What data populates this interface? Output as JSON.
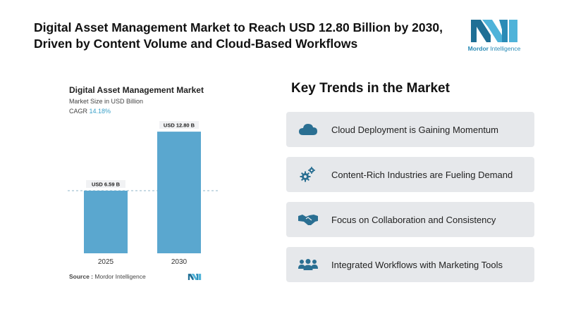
{
  "header": {
    "headline": "Digital Asset Management Market to Reach USD 12.80 Billion by 2030, Driven by Content Volume and Cloud-Based Workflows"
  },
  "logo": {
    "brand_bold": "Mordor",
    "brand_rest": " Intelligence"
  },
  "chart_data": {
    "type": "bar",
    "title": "Digital Asset Management Market",
    "subtitle": "Market Size in USD Billion",
    "cagr_label": "CAGR",
    "cagr_value": "14.18%",
    "categories": [
      "2025",
      "2030"
    ],
    "values": [
      6.59,
      12.8
    ],
    "data_labels": [
      "USD 6.59 B",
      "USD 12.80 B"
    ],
    "ylim": [
      0,
      13.4
    ],
    "reference_line_value": 6.59,
    "bar_color": "#5aa7cf",
    "grid": false
  },
  "source": {
    "label": "Source :",
    "text": "Mordor Intelligence"
  },
  "trends": {
    "heading": "Key Trends in the Market",
    "items": [
      {
        "label": "Cloud Deployment is Gaining Momentum",
        "icon": "cloud-icon"
      },
      {
        "label": "Content-Rich Industries are Fueling Demand",
        "icon": "gears-icon"
      },
      {
        "label": "Focus on Collaboration and Consistency",
        "icon": "handshake-icon"
      },
      {
        "label": "Integrated Workflows with Marketing Tools",
        "icon": "team-icon"
      }
    ]
  },
  "colors": {
    "accent": "#2a6f92",
    "bar": "#5aa7cf",
    "card_bg": "#e6e8eb"
  }
}
